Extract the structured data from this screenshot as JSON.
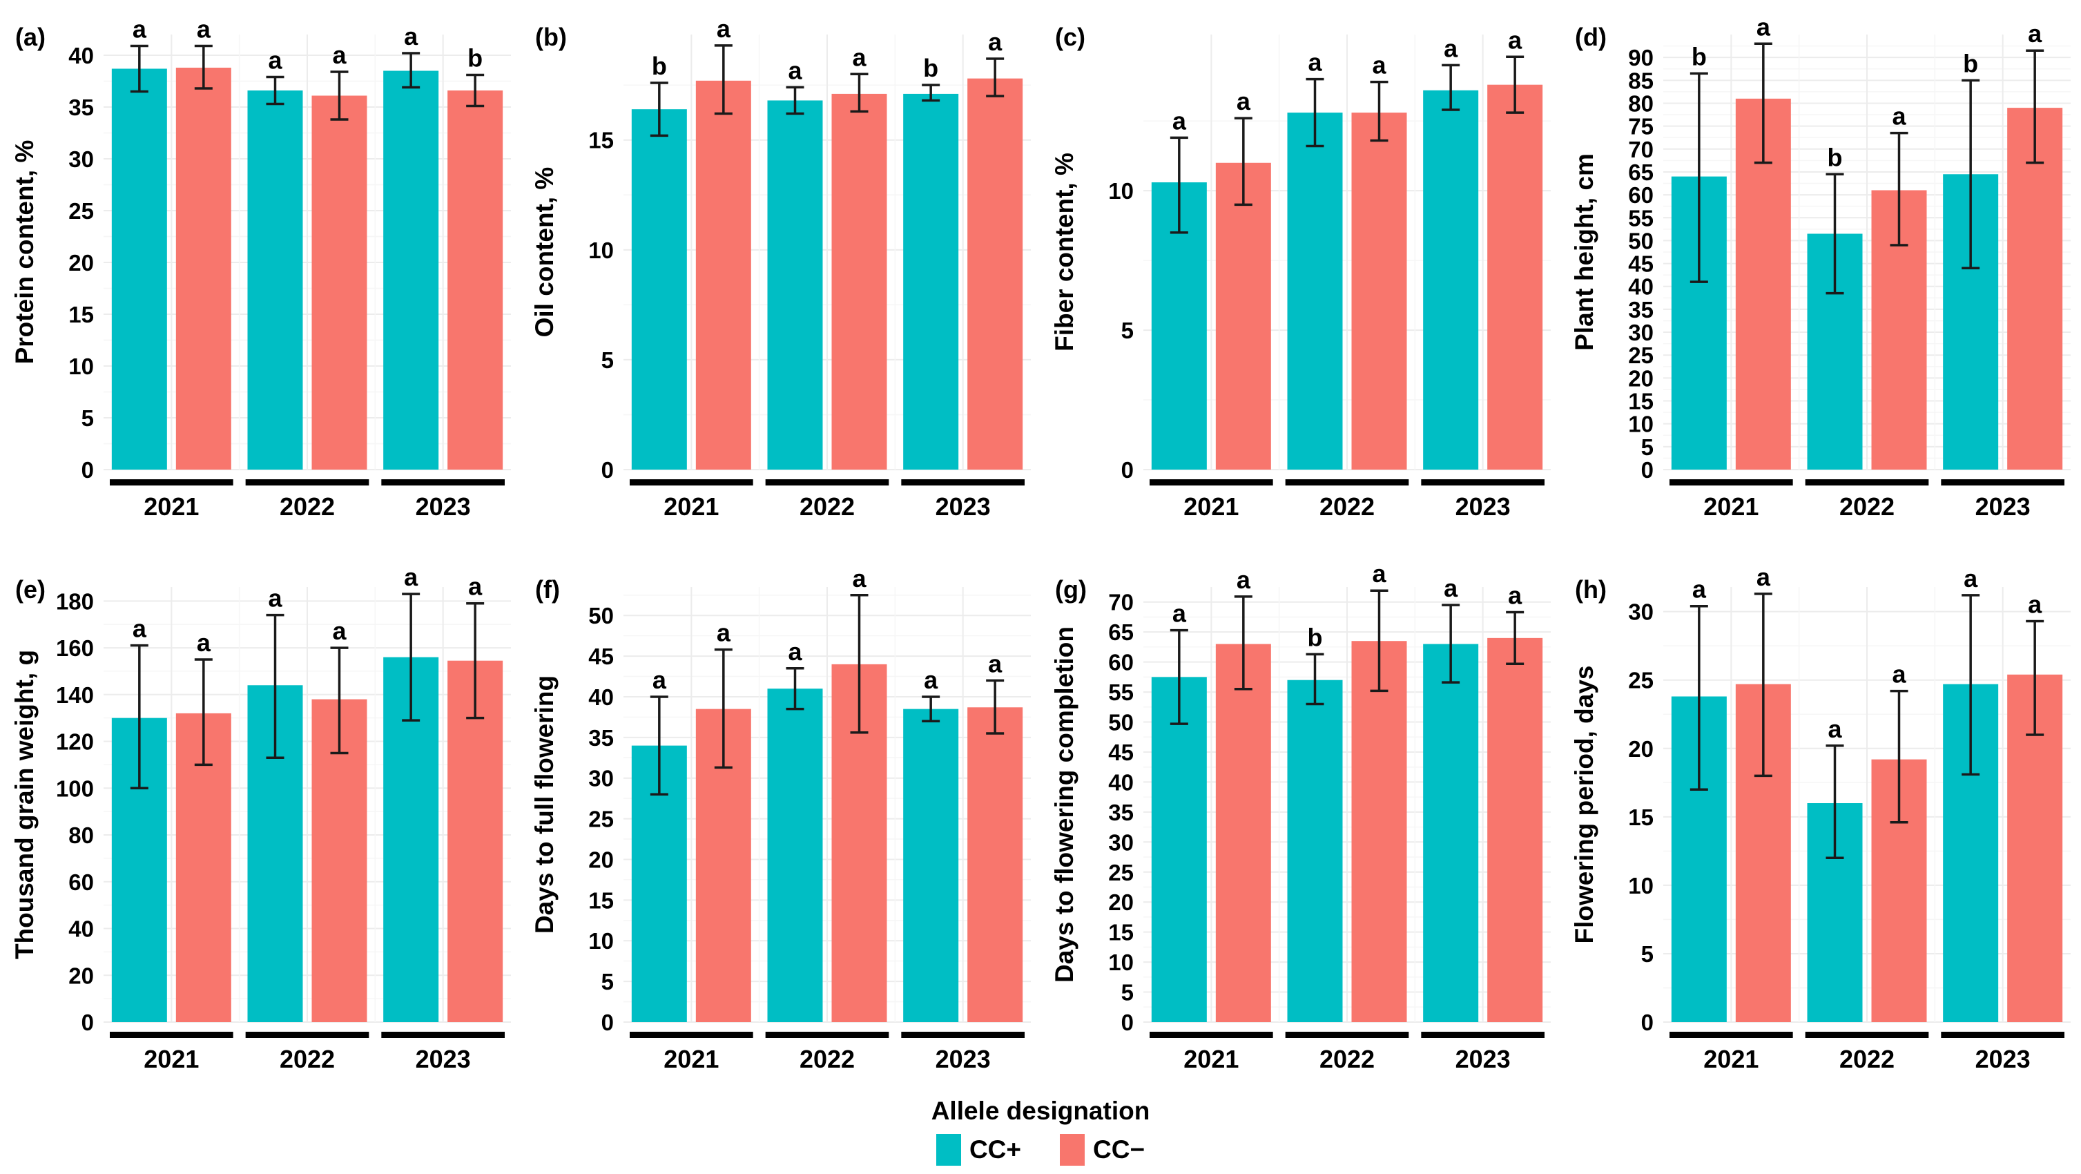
{
  "legend": {
    "title": "Allele designation",
    "items": [
      {
        "label": "CC+",
        "color": "#00BEC4"
      },
      {
        "label": "CC−",
        "color": "#F8766D"
      }
    ]
  },
  "years": [
    "2021",
    "2022",
    "2023"
  ],
  "chart_data": [
    {
      "type": "bar",
      "id": "a",
      "panel_label": "(a)",
      "ylabel": "Protein content, %",
      "xlabel": "",
      "categories": [
        "2021",
        "2022",
        "2023"
      ],
      "yticks": [
        0,
        5,
        10,
        15,
        20,
        25,
        30,
        35,
        40
      ],
      "ylim": [
        0,
        42
      ],
      "grid": true,
      "legend_position": "bottom",
      "series": [
        {
          "name": "CC+",
          "color": "#00BEC4",
          "values": [
            38.7,
            36.6,
            38.5
          ],
          "err_low": [
            36.5,
            35.3,
            36.9
          ],
          "err_high": [
            40.9,
            37.9,
            40.2
          ],
          "letters": [
            "a",
            "a",
            "a"
          ]
        },
        {
          "name": "CC−",
          "color": "#F8766D",
          "values": [
            38.8,
            36.1,
            36.6
          ],
          "err_low": [
            36.8,
            33.8,
            35.1
          ],
          "err_high": [
            40.9,
            38.4,
            38.1
          ],
          "letters": [
            "a",
            "a",
            "b"
          ]
        }
      ]
    },
    {
      "type": "bar",
      "id": "b",
      "panel_label": "(b)",
      "ylabel": "Oil content, %",
      "xlabel": "",
      "categories": [
        "2021",
        "2022",
        "2023"
      ],
      "yticks": [
        0,
        5,
        10,
        15
      ],
      "ylim": [
        0,
        19.8
      ],
      "grid": true,
      "legend_position": "bottom",
      "series": [
        {
          "name": "CC+",
          "color": "#00BEC4",
          "values": [
            16.4,
            16.8,
            17.1
          ],
          "err_low": [
            15.2,
            16.2,
            16.8
          ],
          "err_high": [
            17.6,
            17.4,
            17.5
          ],
          "letters": [
            "b",
            "a",
            "b"
          ]
        },
        {
          "name": "CC−",
          "color": "#F8766D",
          "values": [
            17.7,
            17.1,
            17.8
          ],
          "err_low": [
            16.2,
            16.3,
            17.0
          ],
          "err_high": [
            19.3,
            18.0,
            18.7
          ],
          "letters": [
            "a",
            "a",
            "a"
          ]
        }
      ]
    },
    {
      "type": "bar",
      "id": "c",
      "panel_label": "(c)",
      "ylabel": "Fiber content, %",
      "xlabel": "",
      "categories": [
        "2021",
        "2022",
        "2023"
      ],
      "yticks": [
        0,
        5,
        10
      ],
      "ylim": [
        0,
        15.6
      ],
      "grid": true,
      "legend_position": "bottom",
      "series": [
        {
          "name": "CC+",
          "color": "#00BEC4",
          "values": [
            10.3,
            12.8,
            13.6
          ],
          "err_low": [
            8.5,
            11.6,
            12.9
          ],
          "err_high": [
            11.9,
            14.0,
            14.5
          ],
          "letters": [
            "a",
            "a",
            "a"
          ]
        },
        {
          "name": "CC−",
          "color": "#F8766D",
          "values": [
            11.0,
            12.8,
            13.8
          ],
          "err_low": [
            9.5,
            11.8,
            12.8
          ],
          "err_high": [
            12.6,
            13.9,
            14.8
          ],
          "letters": [
            "a",
            "a",
            "a"
          ]
        }
      ]
    },
    {
      "type": "bar",
      "id": "d",
      "panel_label": "(d)",
      "ylabel": "Plant height, cm",
      "xlabel": "",
      "categories": [
        "2021",
        "2022",
        "2023"
      ],
      "yticks": [
        0,
        5,
        10,
        15,
        20,
        25,
        30,
        35,
        40,
        45,
        50,
        55,
        60,
        65,
        70,
        75,
        80,
        85,
        90
      ],
      "ylim": [
        0,
        95
      ],
      "grid": true,
      "legend_position": "bottom",
      "series": [
        {
          "name": "CC+",
          "color": "#00BEC4",
          "values": [
            64,
            51.5,
            64.5
          ],
          "err_low": [
            41,
            38.5,
            44
          ],
          "err_high": [
            86.5,
            64.5,
            85
          ],
          "letters": [
            "b",
            "b",
            "b"
          ]
        },
        {
          "name": "CC−",
          "color": "#F8766D",
          "values": [
            81,
            61,
            79
          ],
          "err_low": [
            67,
            49,
            67
          ],
          "err_high": [
            93,
            73.5,
            91.5
          ],
          "letters": [
            "a",
            "a",
            "a"
          ]
        }
      ]
    },
    {
      "type": "bar",
      "id": "e",
      "panel_label": "(e)",
      "ylabel": "Thousand grain weight, g",
      "xlabel": "",
      "categories": [
        "2021",
        "2022",
        "2023"
      ],
      "yticks": [
        0,
        20,
        40,
        60,
        80,
        100,
        120,
        140,
        160,
        180
      ],
      "ylim": [
        0,
        186
      ],
      "grid": true,
      "legend_position": "bottom",
      "series": [
        {
          "name": "CC+",
          "color": "#00BEC4",
          "values": [
            130,
            144,
            156
          ],
          "err_low": [
            100,
            113,
            129
          ],
          "err_high": [
            161,
            174,
            183
          ],
          "letters": [
            "a",
            "a",
            "a"
          ]
        },
        {
          "name": "CC−",
          "color": "#F8766D",
          "values": [
            132,
            138,
            154.5
          ],
          "err_low": [
            110,
            115,
            130
          ],
          "err_high": [
            155,
            160,
            179
          ],
          "letters": [
            "a",
            "a",
            "a"
          ]
        }
      ]
    },
    {
      "type": "bar",
      "id": "f",
      "panel_label": "(f)",
      "ylabel": "Days to full flowering",
      "xlabel": "",
      "categories": [
        "2021",
        "2022",
        "2023"
      ],
      "yticks": [
        0,
        5,
        10,
        15,
        20,
        25,
        30,
        35,
        40,
        45,
        50
      ],
      "ylim": [
        0,
        53.5
      ],
      "grid": true,
      "legend_position": "bottom",
      "series": [
        {
          "name": "CC+",
          "color": "#00BEC4",
          "values": [
            34,
            41,
            38.5
          ],
          "err_low": [
            28,
            38.5,
            37
          ],
          "err_high": [
            40,
            43.5,
            40
          ],
          "letters": [
            "a",
            "a",
            "a"
          ]
        },
        {
          "name": "CC−",
          "color": "#F8766D",
          "values": [
            38.5,
            44,
            38.7
          ],
          "err_low": [
            31.3,
            35.6,
            35.5
          ],
          "err_high": [
            45.8,
            52.5,
            42
          ],
          "letters": [
            "a",
            "a",
            "a"
          ]
        }
      ]
    },
    {
      "type": "bar",
      "id": "g",
      "panel_label": "(g)",
      "ylabel": "Days to flowering completion",
      "xlabel": "",
      "categories": [
        "2021",
        "2022",
        "2023"
      ],
      "yticks": [
        0,
        5,
        10,
        15,
        20,
        25,
        30,
        35,
        40,
        45,
        50,
        55,
        60,
        65,
        70
      ],
      "ylim": [
        0,
        72.5
      ],
      "grid": true,
      "legend_position": "bottom",
      "series": [
        {
          "name": "CC+",
          "color": "#00BEC4",
          "values": [
            57.5,
            57,
            63
          ],
          "err_low": [
            49.7,
            53,
            56.6
          ],
          "err_high": [
            65.3,
            61.3,
            69.5
          ],
          "letters": [
            "a",
            "b",
            "a"
          ]
        },
        {
          "name": "CC−",
          "color": "#F8766D",
          "values": [
            63,
            63.5,
            64
          ],
          "err_low": [
            55.5,
            55.2,
            59.7
          ],
          "err_high": [
            70.9,
            71.9,
            68.3
          ],
          "letters": [
            "a",
            "a",
            "a"
          ]
        }
      ]
    },
    {
      "type": "bar",
      "id": "h",
      "panel_label": "(h)",
      "ylabel": "Flowering period, days",
      "xlabel": "",
      "categories": [
        "2021",
        "2022",
        "2023"
      ],
      "yticks": [
        0,
        5,
        10,
        15,
        20,
        25,
        30
      ],
      "ylim": [
        0,
        31.8
      ],
      "grid": true,
      "legend_position": "bottom",
      "series": [
        {
          "name": "CC+",
          "color": "#00BEC4",
          "values": [
            23.8,
            16,
            24.7
          ],
          "err_low": [
            17,
            12,
            18.1
          ],
          "err_high": [
            30.4,
            20.2,
            31.2
          ],
          "letters": [
            "a",
            "a",
            "a"
          ]
        },
        {
          "name": "CC−",
          "color": "#F8766D",
          "values": [
            24.7,
            19.2,
            25.4
          ],
          "err_low": [
            18,
            14.6,
            21
          ],
          "err_high": [
            31.3,
            24.2,
            29.3
          ],
          "letters": [
            "a",
            "a",
            "a"
          ]
        }
      ]
    }
  ]
}
